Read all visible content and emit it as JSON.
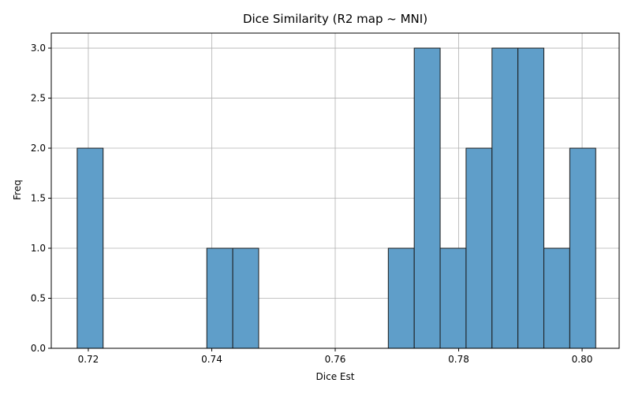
{
  "chart_data": {
    "type": "bar",
    "title": "Dice Similarity (R2 map ~ MNI)",
    "xlabel": "Dice Est",
    "ylabel": "Freq",
    "xlim": [
      0.714,
      0.806
    ],
    "ylim": [
      0,
      3.15
    ],
    "xticks": [
      0.72,
      0.74,
      0.76,
      0.78,
      0.8
    ],
    "xtick_labels": [
      "0.72",
      "0.74",
      "0.76",
      "0.78",
      "0.80"
    ],
    "yticks": [
      0,
      0.5,
      1.0,
      1.5,
      2.0,
      2.5,
      3.0
    ],
    "ytick_labels": [
      "0.0",
      "0.5",
      "1.0",
      "1.5",
      "2.0",
      "2.5",
      "3.0"
    ],
    "grid": true,
    "bar_color": "#5f9ec9",
    "bar_edge_color": "#1a1a1a",
    "bins": [
      {
        "x0": 0.7182,
        "x1": 0.7224,
        "count": 2
      },
      {
        "x0": 0.7224,
        "x1": 0.7266,
        "count": 0
      },
      {
        "x0": 0.7266,
        "x1": 0.7308,
        "count": 0
      },
      {
        "x0": 0.7308,
        "x1": 0.735,
        "count": 0
      },
      {
        "x0": 0.735,
        "x1": 0.7392,
        "count": 0
      },
      {
        "x0": 0.7392,
        "x1": 0.7434,
        "count": 1
      },
      {
        "x0": 0.7434,
        "x1": 0.7476,
        "count": 1
      },
      {
        "x0": 0.7476,
        "x1": 0.7518,
        "count": 0
      },
      {
        "x0": 0.7518,
        "x1": 0.756,
        "count": 0
      },
      {
        "x0": 0.756,
        "x1": 0.7602,
        "count": 0
      },
      {
        "x0": 0.7602,
        "x1": 0.7644,
        "count": 0
      },
      {
        "x0": 0.7644,
        "x1": 0.7686,
        "count": 0
      },
      {
        "x0": 0.7686,
        "x1": 0.7728,
        "count": 1
      },
      {
        "x0": 0.7728,
        "x1": 0.777,
        "count": 3
      },
      {
        "x0": 0.777,
        "x1": 0.7812,
        "count": 1
      },
      {
        "x0": 0.7812,
        "x1": 0.7854,
        "count": 2
      },
      {
        "x0": 0.7854,
        "x1": 0.7896,
        "count": 3
      },
      {
        "x0": 0.7896,
        "x1": 0.7938,
        "count": 3
      },
      {
        "x0": 0.7938,
        "x1": 0.798,
        "count": 1
      },
      {
        "x0": 0.798,
        "x1": 0.8022,
        "count": 2
      }
    ]
  }
}
